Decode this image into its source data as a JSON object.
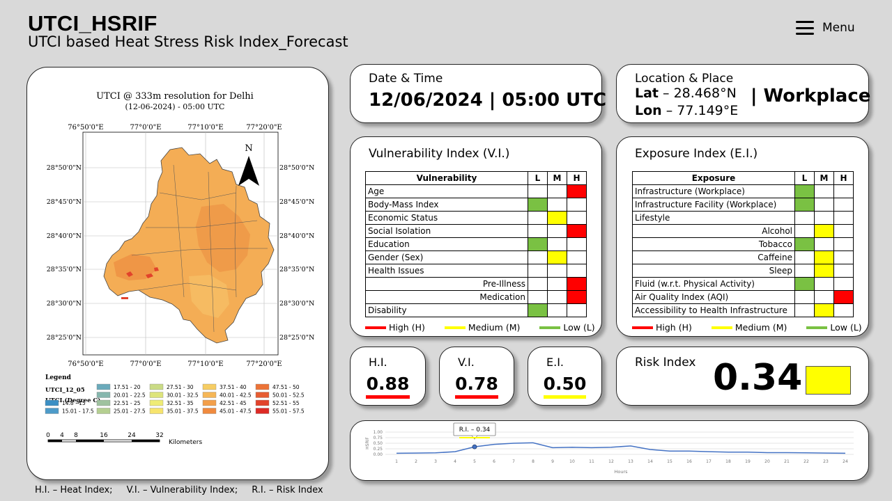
{
  "header": {
    "title": "UTCI_HSRIF",
    "subtitle": "UTCI based Heat Stress Risk Index_Forecast",
    "menu_label": "Menu"
  },
  "map": {
    "title": "UTCI @ 333m resolution for Delhi",
    "subtitle": "(12-06-2024) - 05:00 UTC",
    "top_ticks": [
      "76°50'0\"E",
      "77°0'0\"E",
      "77°10'0\"E",
      "77°20'0\"E"
    ],
    "bottom_ticks": [
      "76°50'0\"E",
      "77°0'0\"E",
      "77°10'0\"E",
      "77°20'0\"E"
    ],
    "left_ticks": [
      "28°50'0\"N",
      "28°45'0\"N",
      "28°40'0\"N",
      "28°35'0\"N",
      "28°30'0\"N",
      "28°25'0\"N"
    ],
    "right_ticks": [
      "28°50'0\"N",
      "28°45'0\"N",
      "28°40'0\"N",
      "28°35'0\"N",
      "28°30'0\"N",
      "28°25'0\"N"
    ],
    "north_label": "N",
    "legend_title": "Legend",
    "legend_layer": "UTCI_12_05",
    "legend_unit": "UTCI (Degree C)",
    "legend_items": [
      {
        "label": "14.8 - 15",
        "color": "#3b8fc4"
      },
      {
        "label": "15.01 - 17.5",
        "color": "#4d9bc9"
      },
      {
        "label": "17.51 - 20",
        "color": "#6aaabb"
      },
      {
        "label": "20.01 - 22.5",
        "color": "#86b6ad"
      },
      {
        "label": "22.51 - 25",
        "color": "#9fc29f"
      },
      {
        "label": "25.01 - 27.5",
        "color": "#b5cf91"
      },
      {
        "label": "27.51 - 30",
        "color": "#cadb85"
      },
      {
        "label": "30.01 - 32.5",
        "color": "#dde47b"
      },
      {
        "label": "32.51 - 35",
        "color": "#efec75"
      },
      {
        "label": "35.01 - 37.5",
        "color": "#f7e46d"
      },
      {
        "label": "37.51 - 40",
        "color": "#f6cd63"
      },
      {
        "label": "40.01 - 42.5",
        "color": "#f5b656"
      },
      {
        "label": "42.51 - 45",
        "color": "#f39f4a"
      },
      {
        "label": "45.01 - 47.5",
        "color": "#f08a3e"
      },
      {
        "label": "47.51 - 50",
        "color": "#ec7337"
      },
      {
        "label": "50.01 - 52.5",
        "color": "#e65c31"
      },
      {
        "label": "52.51 - 55",
        "color": "#e2432b"
      },
      {
        "label": "55.01 - 57.5",
        "color": "#dd2a25"
      }
    ],
    "scale_ticks": [
      "0",
      "4",
      "8",
      "16",
      "24",
      "32"
    ],
    "scale_unit": "Kilometers"
  },
  "footnote": {
    "hi": "H.I. – Heat Index;",
    "vi": "V.I. – Vulnerability Index;",
    "ri": "R.I. – Risk Index"
  },
  "datetime": {
    "label": "Date & Time",
    "value": "12/06/2024 | 05:00 UTC"
  },
  "location": {
    "label": "Location & Place",
    "lat_key": "Lat",
    "lat_value": " – 28.468°N",
    "lon_key": "Lon",
    "lon_value": " – 77.149°E",
    "place": "| Workplace"
  },
  "vulnerability": {
    "title": "Vulnerability Index (V.I.)",
    "header": "Vulnerability",
    "levels": [
      "L",
      "M",
      "H"
    ],
    "rows": [
      {
        "label": "Age",
        "sub": false,
        "level": "H"
      },
      {
        "label": "Body-Mass Index",
        "sub": false,
        "level": "L"
      },
      {
        "label": "Economic Status",
        "sub": false,
        "level": "M"
      },
      {
        "label": "Social Isolation",
        "sub": false,
        "level": "H"
      },
      {
        "label": "Education",
        "sub": false,
        "level": "L"
      },
      {
        "label": "Gender (Sex)",
        "sub": false,
        "level": "M"
      },
      {
        "label": "Health Issues",
        "sub": false,
        "level": ""
      },
      {
        "label": "Pre-Illness",
        "sub": true,
        "level": "H"
      },
      {
        "label": "Medication",
        "sub": true,
        "level": "H"
      },
      {
        "label": "Disability",
        "sub": false,
        "level": "L"
      }
    ]
  },
  "exposure": {
    "title": "Exposure Index (E.I.)",
    "header": "Exposure",
    "levels": [
      "L",
      "M",
      "H"
    ],
    "rows": [
      {
        "label": "Infrastructure (Workplace)",
        "sub": false,
        "level": "L"
      },
      {
        "label": "Infrastructure Facility (Workplace)",
        "sub": false,
        "level": "L"
      },
      {
        "label": "Lifestyle",
        "sub": false,
        "level": ""
      },
      {
        "label": "Alcohol",
        "sub": true,
        "level": "M"
      },
      {
        "label": "Tobacco",
        "sub": true,
        "level": "L"
      },
      {
        "label": "Caffeine",
        "sub": true,
        "level": "M"
      },
      {
        "label": "Sleep",
        "sub": true,
        "level": "M"
      },
      {
        "label": "Fluid (w.r.t. Physical Activity)",
        "sub": false,
        "level": "L"
      },
      {
        "label": "Air Quality Index (AQI)",
        "sub": false,
        "level": "H"
      },
      {
        "label": "Accessibility to Health Infrastructure",
        "sub": false,
        "level": "M"
      }
    ]
  },
  "level_legend": {
    "high": "High (H)",
    "medium": "Medium (M)",
    "low": "Low (L)"
  },
  "colors": {
    "high": "#ff0000",
    "medium": "#ffff00",
    "low": "#7ac143",
    "trend_line": "#4472c4"
  },
  "indices": {
    "hi": {
      "label": "H.I.",
      "value": "0.88",
      "level": "high"
    },
    "vi": {
      "label": "V.I.",
      "value": "0.78",
      "level": "high"
    },
    "ei": {
      "label": "E.I.",
      "value": "0.50",
      "level": "medium"
    }
  },
  "risk": {
    "label": "Risk Index",
    "value": "0.34",
    "level": "medium"
  },
  "chart_data": {
    "type": "line",
    "title": "",
    "xlabel": "Hours",
    "ylabel": "HSRIF",
    "x": [
      1,
      2,
      3,
      4,
      5,
      6,
      7,
      8,
      9,
      10,
      11,
      12,
      13,
      14,
      15,
      16,
      17,
      18,
      19,
      20,
      21,
      22,
      23,
      24
    ],
    "series": [
      {
        "values": [
          0.05,
          0.06,
          0.07,
          0.12,
          0.34,
          0.45,
          0.5,
          0.52,
          0.3,
          0.32,
          0.3,
          0.32,
          0.38,
          0.22,
          0.15,
          0.15,
          0.12,
          0.1,
          0.1,
          0.08,
          0.08,
          0.07,
          0.06,
          0.05
        ]
      }
    ],
    "yticks": [
      "0.00",
      "0.25",
      "0.50",
      "0.75",
      "1.00"
    ],
    "ylim": [
      0,
      1
    ],
    "grid": true,
    "highlight": {
      "x": 5,
      "label": "R.I. – 0.34"
    }
  }
}
